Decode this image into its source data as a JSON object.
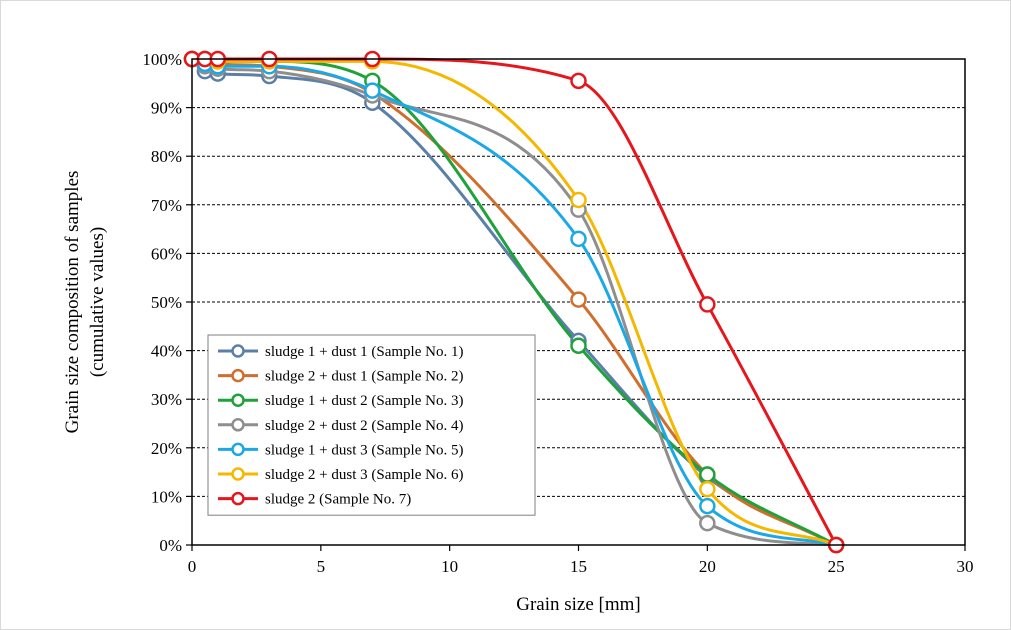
{
  "chart_data": {
    "type": "line",
    "title": "",
    "xlabel": "Grain size [mm]",
    "ylabel_line1": "Grain size composition of samples",
    "ylabel_line2": "(cumulative values)",
    "xlim": [
      0,
      30
    ],
    "ylim": [
      0,
      100
    ],
    "x_ticks": [
      "0",
      "5",
      "10",
      "15",
      "20",
      "25",
      "30"
    ],
    "y_ticks": [
      "0%",
      "10%",
      "20%",
      "30%",
      "40%",
      "50%",
      "60%",
      "70%",
      "80%",
      "90%",
      "100%"
    ],
    "grid": "horizontal dashed",
    "legend_position": "bottom-left inside plot",
    "series": [
      {
        "name": "sludge 1 + dust 1 (Sample No. 1)",
        "color": "#5B7FA6",
        "x": [
          0,
          0.5,
          1,
          3,
          7,
          15,
          20,
          25
        ],
        "y": [
          100,
          97.5,
          97,
          96.5,
          91,
          42,
          14,
          0
        ]
      },
      {
        "name": "sludge 2 + dust 1 (Sample No. 2)",
        "color": "#D06E2E",
        "x": [
          0,
          0.5,
          1,
          3,
          7,
          15,
          20,
          25
        ],
        "y": [
          100,
          99.5,
          99,
          98.5,
          93,
          50.5,
          14.5,
          0
        ]
      },
      {
        "name": "sludge 1 + dust 2 (Sample No. 3)",
        "color": "#1FA23C",
        "x": [
          0,
          0.5,
          1,
          3,
          7,
          15,
          20,
          25
        ],
        "y": [
          100,
          100,
          99.5,
          99.5,
          95.5,
          41,
          14.5,
          0
        ]
      },
      {
        "name": "sludge 2 + dust 2 (Sample No. 4)",
        "color": "#8E8E8E",
        "x": [
          0,
          0.5,
          1,
          3,
          7,
          15,
          20,
          25
        ],
        "y": [
          100,
          98.5,
          98,
          97.5,
          92.5,
          69,
          4.5,
          0
        ]
      },
      {
        "name": "sludge 1 + dust 3 (Sample No. 5)",
        "color": "#1CA8E6",
        "x": [
          0,
          0.5,
          1,
          3,
          7,
          15,
          20,
          25
        ],
        "y": [
          100,
          99,
          98.5,
          98.5,
          93.5,
          63,
          8,
          0
        ]
      },
      {
        "name": "sludge 2 + dust 3 (Sample No. 6)",
        "color": "#F5B800",
        "x": [
          0,
          0.5,
          1,
          3,
          7,
          15,
          20,
          25
        ],
        "y": [
          100,
          100,
          99.5,
          99.5,
          99.5,
          71,
          11.5,
          0
        ]
      },
      {
        "name": "sludge 2 (Sample No. 7)",
        "color": "#E5161C",
        "x": [
          0,
          0.5,
          1,
          3,
          7,
          15,
          20,
          25
        ],
        "y": [
          100,
          100,
          100,
          100,
          100,
          95.5,
          49.5,
          0
        ]
      }
    ]
  }
}
